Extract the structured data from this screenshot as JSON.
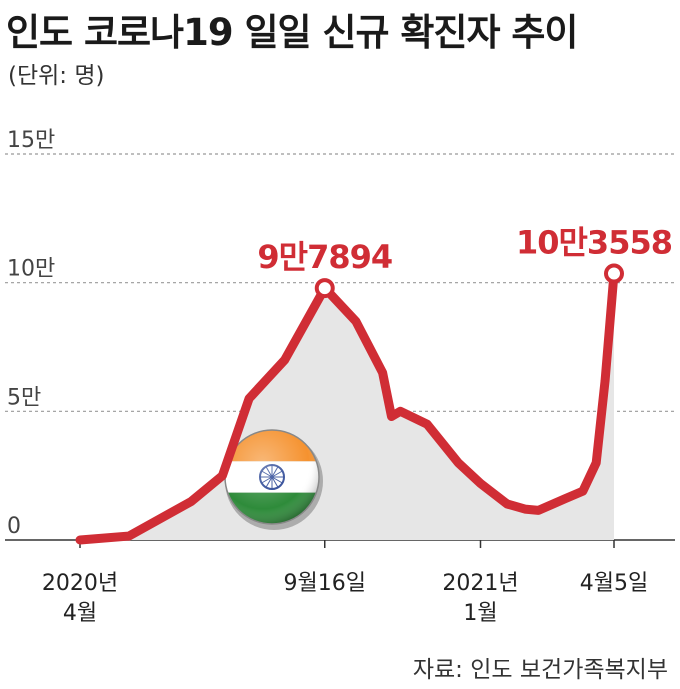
{
  "title": "인도 코로나19 일일 신규 확진자 추이",
  "unit": "(단위: 명)",
  "source": "자료: 인도 보건가족복지부",
  "colors": {
    "line": "#d02d35",
    "area": "#e6e6e6",
    "grid": "#999999"
  },
  "chart_data": {
    "type": "area",
    "ylim": [
      0,
      150000
    ],
    "yticks": [
      {
        "value": 0,
        "label": "0"
      },
      {
        "value": 50000,
        "label": "5만"
      },
      {
        "value": 100000,
        "label": "10만"
      },
      {
        "value": 150000,
        "label": "15만"
      }
    ],
    "xlim": [
      0,
      12.2
    ],
    "xticks": [
      {
        "x": 0,
        "lines": [
          "2020년",
          "4월"
        ]
      },
      {
        "x": 5.5,
        "lines": [
          "9월16일"
        ]
      },
      {
        "x": 9.0,
        "lines": [
          "2021년",
          "1월"
        ]
      },
      {
        "x": 12.0,
        "lines": [
          "4월5일"
        ]
      }
    ],
    "series": [
      {
        "points": [
          [
            0,
            0
          ],
          [
            1.1,
            1500
          ],
          [
            2.5,
            15000
          ],
          [
            3.2,
            25000
          ],
          [
            3.8,
            55000
          ],
          [
            4.6,
            70000
          ],
          [
            5.5,
            97894
          ],
          [
            6.2,
            85000
          ],
          [
            6.8,
            65000
          ],
          [
            7.0,
            48000
          ],
          [
            7.2,
            50000
          ],
          [
            7.8,
            45000
          ],
          [
            8.5,
            30000
          ],
          [
            9.0,
            22000
          ],
          [
            9.6,
            14000
          ],
          [
            10.0,
            12000
          ],
          [
            10.3,
            11500
          ],
          [
            10.9,
            16000
          ],
          [
            11.3,
            19000
          ],
          [
            11.6,
            30000
          ],
          [
            11.8,
            62000
          ],
          [
            12.0,
            103558
          ]
        ]
      }
    ],
    "annotations": [
      {
        "x": 5.5,
        "y": 97894,
        "label": "9만7894",
        "marker": "circle"
      },
      {
        "x": 12.0,
        "y": 103558,
        "label": "10만3558",
        "marker": "circle"
      }
    ],
    "image": {
      "name": "india-flag",
      "colors": [
        "#f5922f",
        "#ffffff",
        "#2e8b3a",
        "#1f3c8f"
      ]
    }
  }
}
